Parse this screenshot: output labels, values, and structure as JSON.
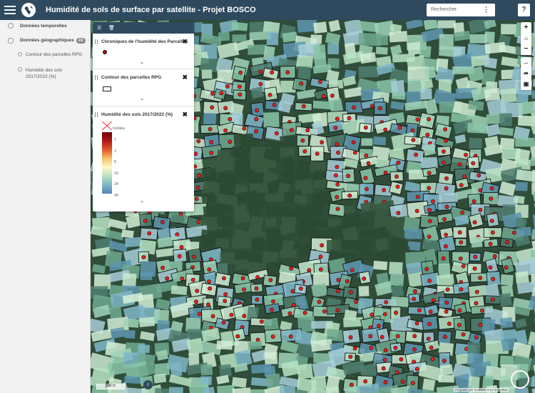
{
  "header": {
    "title": "Humidité de sols de surface par satellite - Projet BOSCO",
    "search_placeholder": "Rechercher",
    "help_label": "?"
  },
  "sidebar": {
    "items": [
      {
        "label": "Données temporelles"
      },
      {
        "label": "Données géographiques",
        "badge": "2/2"
      },
      {
        "label": "Contour des parcelles RPG"
      },
      {
        "label": "Humidité des sols 2017/2022 (%)"
      }
    ]
  },
  "layers_panel": {
    "layers": [
      {
        "title": "Chroniques de l'humidité des Parcelles"
      },
      {
        "title": "Contour des parcelles RPG"
      },
      {
        "title": "Humidité des sols 2017/2022 (%)"
      }
    ],
    "legend": {
      "nodata_label": "nodata",
      "ticks": [
        "1",
        "2",
        "8",
        "16",
        "24",
        "40"
      ],
      "colors": [
        "#8b0000",
        "#c0392b",
        "#f5c26b",
        "#fff8c9",
        "#b7e0c0",
        "#4f87b8"
      ]
    }
  },
  "map": {
    "scale_label": "500 m",
    "attribution": "Propulsé par mviewer 3.10-snapshot",
    "info_label": "i"
  },
  "colors": {
    "header_bg": "#2f4a5e",
    "forest": "#2f4d39",
    "parcel_dot": "#e02020"
  }
}
